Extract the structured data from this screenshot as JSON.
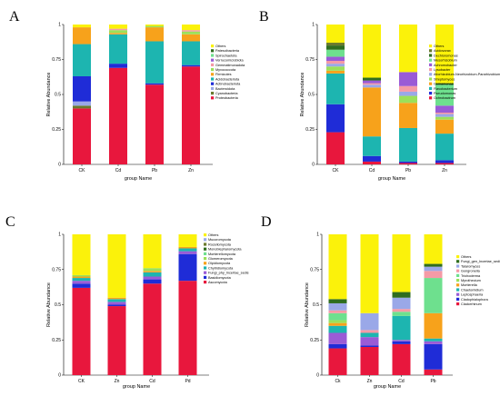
{
  "colors": {
    "yellow": "#fbf20a",
    "darkgreen": "#2f6d1f",
    "lightgreen": "#6ee08e",
    "purple": "#9a5bd6",
    "pink": "#f59aa6",
    "lime": "#9be05a",
    "orange": "#f7a21b",
    "teal": "#1db5b0",
    "blue": "#1f2cd7",
    "red": "#e8173d",
    "lavender": "#9aa8e8",
    "olive": "#6a7a2e"
  },
  "chart_data": [
    {
      "panel": "A",
      "type": "bar",
      "stacked": true,
      "ylabel": "Relative Abundance",
      "xlabel": "group Name",
      "ylim": [
        0,
        1
      ],
      "yticks": [
        "0",
        "0.25",
        "0.5",
        "0.75",
        "1"
      ],
      "categories": [
        "CK",
        "Cd",
        "Pb",
        "Zn"
      ],
      "series": [
        {
          "name": "Proteobacteria",
          "color": "#e8173d",
          "values": [
            0.4,
            0.69,
            0.57,
            0.7
          ]
        },
        {
          "name": "Cyanobacteria",
          "color": "#6a7a2e",
          "values": [
            0.02,
            0.0,
            0.0,
            0.0
          ]
        },
        {
          "name": "Bacteroidota",
          "color": "#9aa8e8",
          "values": [
            0.03,
            0.0,
            0.0,
            0.0
          ]
        },
        {
          "name": "Actinobacteriota",
          "color": "#1f2cd7",
          "values": [
            0.18,
            0.03,
            0.01,
            0.01
          ]
        },
        {
          "name": "Acidobacteriota",
          "color": "#1db5b0",
          "values": [
            0.23,
            0.21,
            0.3,
            0.17
          ]
        },
        {
          "name": "Firmicutes",
          "color": "#f7a21b",
          "values": [
            0.12,
            0.01,
            0.1,
            0.05
          ]
        },
        {
          "name": "Myxococcota",
          "color": "#9be05a",
          "values": [
            0.0,
            0.02,
            0.01,
            0.02
          ]
        },
        {
          "name": "Gemmatimonadota",
          "color": "#f59aa6",
          "values": [
            0.0,
            0.01,
            0.0,
            0.01
          ]
        },
        {
          "name": "Verrucomicrobiota",
          "color": "#9a5bd6",
          "values": [
            0.0,
            0.0,
            0.0,
            0.0
          ]
        },
        {
          "name": "Spirochaetota",
          "color": "#6ee08e",
          "values": [
            0.0,
            0.0,
            0.0,
            0.0
          ]
        },
        {
          "name": "Patescibacteria",
          "color": "#2f6d1f",
          "values": [
            0.0,
            0.0,
            0.0,
            0.0
          ]
        },
        {
          "name": "Others",
          "color": "#fbf20a",
          "values": [
            0.02,
            0.03,
            0.01,
            0.04
          ]
        }
      ]
    },
    {
      "panel": "B",
      "type": "bar",
      "stacked": true,
      "ylabel": "Relative Abundance",
      "xlabel": "group Name",
      "ylim": [
        0,
        1
      ],
      "yticks": [
        "0",
        "0.25",
        "0.5",
        "0.75",
        "1"
      ],
      "categories": [
        "CK",
        "Cd",
        "Pb",
        "Zn"
      ],
      "series": [
        {
          "name": "Ochrobactrum",
          "color": "#e8173d",
          "values": [
            0.23,
            0.02,
            0.01,
            0.01
          ]
        },
        {
          "name": "Pseudomonas",
          "color": "#1f2cd7",
          "values": [
            0.2,
            0.04,
            0.01,
            0.02
          ]
        },
        {
          "name": "Flavobacterium",
          "color": "#1db5b0",
          "values": [
            0.22,
            0.14,
            0.24,
            0.19
          ]
        },
        {
          "name": "Comamonas",
          "color": "#f7a21b",
          "values": [
            0.02,
            0.35,
            0.18,
            0.1
          ]
        },
        {
          "name": "Streptomyces",
          "color": "#9be05a",
          "values": [
            0.03,
            0.0,
            0.05,
            0.02
          ]
        },
        {
          "name": "Allorhizobium-Neorhizobium-Pararhizobium-Rhizobium",
          "color": "#9aa8e8",
          "values": [
            0.02,
            0.02,
            0.03,
            0.02
          ]
        },
        {
          "name": "Lysobacter",
          "color": "#f59aa6",
          "values": [
            0.02,
            0.01,
            0.04,
            0.01
          ]
        },
        {
          "name": "Achromobacter",
          "color": "#9a5bd6",
          "values": [
            0.03,
            0.02,
            0.1,
            0.05
          ]
        },
        {
          "name": "Mesorhizobium",
          "color": "#6ee08e",
          "values": [
            0.05,
            0.0,
            0.0,
            0.15
          ]
        },
        {
          "name": "Dechloromonas",
          "color": "#2f6d1f",
          "values": [
            0.03,
            0.02,
            0.0,
            0.01
          ]
        },
        {
          "name": "Acidovorax",
          "color": "#6a7a2e",
          "values": [
            0.02,
            0.0,
            0.0,
            0.0
          ]
        },
        {
          "name": "Others",
          "color": "#fbf20a",
          "values": [
            0.13,
            0.38,
            0.34,
            0.42
          ]
        }
      ]
    },
    {
      "panel": "C",
      "type": "bar",
      "stacked": true,
      "ylabel": "Relative Abundance",
      "xlabel": "group Name",
      "ylim": [
        0,
        1
      ],
      "yticks": [
        "0",
        "0.25",
        "0.5",
        "0.75",
        "1"
      ],
      "categories": [
        "CK",
        "Zn",
        "Cd",
        "Pd"
      ],
      "series": [
        {
          "name": "Ascomycota",
          "color": "#e8173d",
          "values": [
            0.62,
            0.49,
            0.65,
            0.67
          ]
        },
        {
          "name": "Basidiomycota",
          "color": "#1f2cd7",
          "values": [
            0.03,
            0.01,
            0.03,
            0.19
          ]
        },
        {
          "name": "Fungi_phy_Incertae_sedis",
          "color": "#9a5bd6",
          "values": [
            0.02,
            0.02,
            0.02,
            0.02
          ]
        },
        {
          "name": "Chytridiomycota",
          "color": "#1db5b0",
          "values": [
            0.02,
            0.02,
            0.03,
            0.02
          ]
        },
        {
          "name": "Olpidiomycota",
          "color": "#f7a21b",
          "values": [
            0.01,
            0.01,
            0.01,
            0.01
          ]
        },
        {
          "name": "Glomeromycota",
          "color": "#9be05a",
          "values": [
            0.01,
            0.0,
            0.02,
            0.0
          ]
        },
        {
          "name": "Mortierellomycota",
          "color": "#6ee08e",
          "values": [
            0.0,
            0.0,
            0.0,
            0.0
          ]
        },
        {
          "name": "Monoblepharomycota",
          "color": "#2f6d1f",
          "values": [
            0.0,
            0.0,
            0.0,
            0.0
          ]
        },
        {
          "name": "Rozellomycota",
          "color": "#6a7a2e",
          "values": [
            0.0,
            0.0,
            0.0,
            0.0
          ]
        },
        {
          "name": "Mucoromycota",
          "color": "#9aa8e8",
          "values": [
            0.0,
            0.0,
            0.0,
            0.0
          ]
        },
        {
          "name": "Others",
          "color": "#fbf20a",
          "values": [
            0.29,
            0.45,
            0.24,
            0.09
          ]
        }
      ]
    },
    {
      "panel": "D",
      "type": "bar",
      "stacked": true,
      "ylabel": "Relative Abundance",
      "xlabel": "group Name",
      "ylim": [
        0,
        1
      ],
      "yticks": [
        "0",
        "0.25",
        "0.5",
        "0.75",
        "1"
      ],
      "categories": [
        "Ck",
        "Zn",
        "Cd",
        "Pb"
      ],
      "series": [
        {
          "name": "Cladorrhinum",
          "color": "#e8173d",
          "values": [
            0.19,
            0.2,
            0.22,
            0.04
          ]
        },
        {
          "name": "Cladophialophora",
          "color": "#1f2cd7",
          "values": [
            0.03,
            0.01,
            0.02,
            0.18
          ]
        },
        {
          "name": "Leptosphaeria",
          "color": "#9a5bd6",
          "values": [
            0.08,
            0.06,
            0.01,
            0.02
          ]
        },
        {
          "name": "Chaetomidium",
          "color": "#1db5b0",
          "values": [
            0.05,
            0.03,
            0.17,
            0.02
          ]
        },
        {
          "name": "Mortierella",
          "color": "#f7a21b",
          "values": [
            0.02,
            0.0,
            0.0,
            0.18
          ]
        },
        {
          "name": "Myrothecium",
          "color": "#9be05a",
          "values": [
            0.02,
            0.0,
            0.0,
            0.0
          ]
        },
        {
          "name": "Trichoderma",
          "color": "#6ee08e",
          "values": [
            0.05,
            0.0,
            0.03,
            0.25
          ]
        },
        {
          "name": "Gongronella",
          "color": "#f59aa6",
          "values": [
            0.02,
            0.02,
            0.02,
            0.05
          ]
        },
        {
          "name": "Talaromyces",
          "color": "#9aa8e8",
          "values": [
            0.05,
            0.12,
            0.08,
            0.03
          ]
        },
        {
          "name": "Fungi_gen_Incertae_sedis",
          "color": "#2f6d1f",
          "values": [
            0.03,
            0.0,
            0.04,
            0.02
          ]
        },
        {
          "name": "Others",
          "color": "#fbf20a",
          "values": [
            0.46,
            0.56,
            0.41,
            0.21
          ]
        }
      ]
    }
  ]
}
